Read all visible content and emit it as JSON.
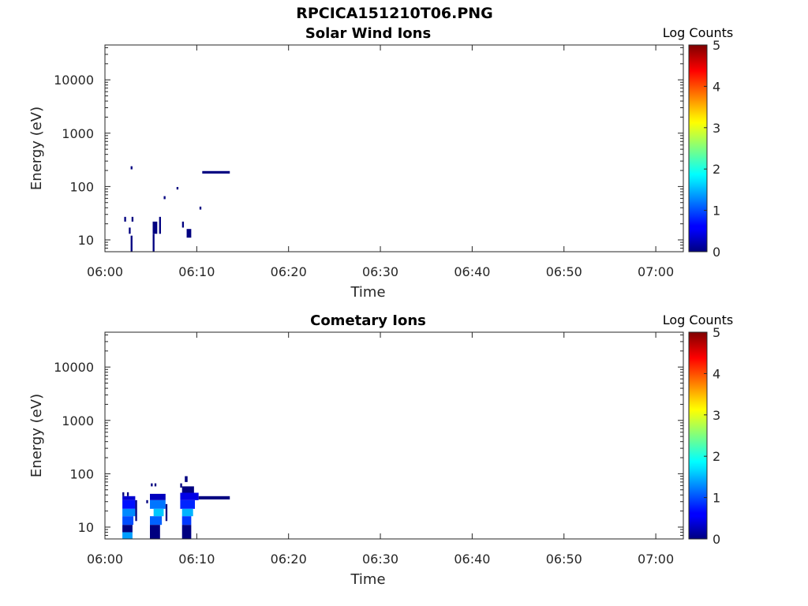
{
  "figure_title": "RPCICA151210T06.PNG",
  "chart_data": [
    {
      "type": "heatmap",
      "title": "Solar Wind Ions",
      "xlabel": "Time",
      "ylabel": "Energy (eV)",
      "yscale": "log",
      "xlim": [
        "06:00",
        "07:03"
      ],
      "ylim": [
        6,
        45000
      ],
      "xticks": [
        "06:00",
        "06:10",
        "06:20",
        "06:30",
        "06:40",
        "06:50",
        "07:00"
      ],
      "yticks": [
        10,
        100,
        1000,
        10000
      ],
      "ytick_labels": [
        "10",
        "100",
        "1000",
        "10000"
      ],
      "colorbar": {
        "label": "Log Counts",
        "min": 0,
        "max": 5,
        "ticks": [
          "0",
          "1",
          "2",
          "3",
          "4",
          "5"
        ],
        "colormap": "jet"
      },
      "cells": [
        {
          "t0": "06:02.8",
          "t1": "06:03.0",
          "e0": 210,
          "e1": 240,
          "v": 0.0
        },
        {
          "t0": "06:02.1",
          "t1": "06:02.3",
          "e0": 22,
          "e1": 27,
          "v": 0.0
        },
        {
          "t0": "06:02.9",
          "t1": "06:03.1",
          "e0": 22,
          "e1": 27,
          "v": 0.0
        },
        {
          "t0": "06:02.6",
          "t1": "06:02.8",
          "e0": 13,
          "e1": 17,
          "v": 0.0
        },
        {
          "t0": "06:02.8",
          "t1": "06:03.0",
          "e0": 6,
          "e1": 12,
          "v": 0.0
        },
        {
          "t0": "06:05.2",
          "t1": "06:05.7",
          "e0": 13,
          "e1": 22,
          "v": 0.0
        },
        {
          "t0": "06:05.2",
          "t1": "06:05.4",
          "e0": 6,
          "e1": 13,
          "v": 0.0
        },
        {
          "t0": "06:05.9",
          "t1": "06:06.1",
          "e0": 13,
          "e1": 27,
          "v": 0.0
        },
        {
          "t0": "06:06.4",
          "t1": "06:06.6",
          "e0": 58,
          "e1": 66,
          "v": 0.0
        },
        {
          "t0": "06:07.8",
          "t1": "06:08.0",
          "e0": 88,
          "e1": 98,
          "v": 0.0
        },
        {
          "t0": "06:08.4",
          "t1": "06:08.6",
          "e0": 17,
          "e1": 22,
          "v": 0.0
        },
        {
          "t0": "06:08.9",
          "t1": "06:09.4",
          "e0": 11,
          "e1": 16,
          "v": 0.0
        },
        {
          "t0": "06:10.3",
          "t1": "06:10.5",
          "e0": 37,
          "e1": 42,
          "v": 0.0
        },
        {
          "t0": "06:10.6",
          "t1": "06:13.6",
          "e0": 175,
          "e1": 195,
          "v": 0.0
        }
      ]
    },
    {
      "type": "heatmap",
      "title": "Cometary Ions",
      "xlabel": "Time",
      "ylabel": "Energy (eV)",
      "yscale": "log",
      "xlim": [
        "06:00",
        "07:03"
      ],
      "ylim": [
        6,
        45000
      ],
      "xticks": [
        "06:00",
        "06:10",
        "06:20",
        "06:30",
        "06:40",
        "06:50",
        "07:00"
      ],
      "yticks": [
        10,
        100,
        1000,
        10000
      ],
      "ytick_labels": [
        "10",
        "100",
        "1000",
        "10000"
      ],
      "colorbar": {
        "label": "Log Counts",
        "min": 0,
        "max": 5,
        "ticks": [
          "0",
          "1",
          "2",
          "3",
          "4",
          "5"
        ],
        "colormap": "jet"
      },
      "cells": [
        {
          "t0": "06:01.9",
          "t1": "06:02.1",
          "e0": 38,
          "e1": 45,
          "v": 0.0
        },
        {
          "t0": "06:02.4",
          "t1": "06:02.6",
          "e0": 38,
          "e1": 45,
          "v": 0.0
        },
        {
          "t0": "06:01.9",
          "t1": "06:03.3",
          "e0": 32,
          "e1": 38,
          "v": 0.4
        },
        {
          "t0": "06:01.9",
          "t1": "06:03.3",
          "e0": 22,
          "e1": 32,
          "v": 0.7
        },
        {
          "t0": "06:01.9",
          "t1": "06:03.3",
          "e0": 16,
          "e1": 22,
          "v": 1.3
        },
        {
          "t0": "06:01.9",
          "t1": "06:03.1",
          "e0": 11,
          "e1": 16,
          "v": 1.0
        },
        {
          "t0": "06:01.9",
          "t1": "06:03.0",
          "e0": 8,
          "e1": 11,
          "v": 0.0
        },
        {
          "t0": "06:01.9",
          "t1": "06:03.0",
          "e0": 6,
          "e1": 8,
          "v": 1.4
        },
        {
          "t0": "06:03.3",
          "t1": "06:03.5",
          "e0": 13,
          "e1": 32,
          "v": 0.0
        },
        {
          "t0": "06:04.5",
          "t1": "06:04.7",
          "e0": 28,
          "e1": 32,
          "v": 0.0
        },
        {
          "t0": "06:05.0",
          "t1": "06:05.2",
          "e0": 58,
          "e1": 66,
          "v": 0.0
        },
        {
          "t0": "06:05.4",
          "t1": "06:05.6",
          "e0": 58,
          "e1": 66,
          "v": 0.0
        },
        {
          "t0": "06:04.9",
          "t1": "06:06.6",
          "e0": 32,
          "e1": 42,
          "v": 0.3
        },
        {
          "t0": "06:04.9",
          "t1": "06:06.6",
          "e0": 22,
          "e1": 32,
          "v": 1.2
        },
        {
          "t0": "06:05.3",
          "t1": "06:06.4",
          "e0": 16,
          "e1": 22,
          "v": 1.6
        },
        {
          "t0": "06:04.9",
          "t1": "06:06.2",
          "e0": 11,
          "e1": 16,
          "v": 1.1
        },
        {
          "t0": "06:04.9",
          "t1": "06:06.0",
          "e0": 6,
          "e1": 11,
          "v": 0.0
        },
        {
          "t0": "06:06.6",
          "t1": "06:06.8",
          "e0": 13,
          "e1": 27,
          "v": 0.0
        },
        {
          "t0": "06:08.2",
          "t1": "06:08.4",
          "e0": 55,
          "e1": 66,
          "v": 0.0
        },
        {
          "t0": "06:08.7",
          "t1": "06:09.0",
          "e0": 70,
          "e1": 90,
          "v": 0.0
        },
        {
          "t0": "06:08.4",
          "t1": "06:09.7",
          "e0": 44,
          "e1": 58,
          "v": 0.0
        },
        {
          "t0": "06:08.2",
          "t1": "06:10.2",
          "e0": 32,
          "e1": 44,
          "v": 0.5
        },
        {
          "t0": "06:08.2",
          "t1": "06:09.8",
          "e0": 22,
          "e1": 32,
          "v": 0.8
        },
        {
          "t0": "06:08.4",
          "t1": "06:09.6",
          "e0": 16,
          "e1": 22,
          "v": 1.5
        },
        {
          "t0": "06:08.4",
          "t1": "06:09.4",
          "e0": 11,
          "e1": 16,
          "v": 0.9
        },
        {
          "t0": "06:08.4",
          "t1": "06:09.4",
          "e0": 6,
          "e1": 11,
          "v": 0.0
        },
        {
          "t0": "06:10.2",
          "t1": "06:13.6",
          "e0": 33,
          "e1": 38,
          "v": 0.0
        }
      ]
    }
  ]
}
